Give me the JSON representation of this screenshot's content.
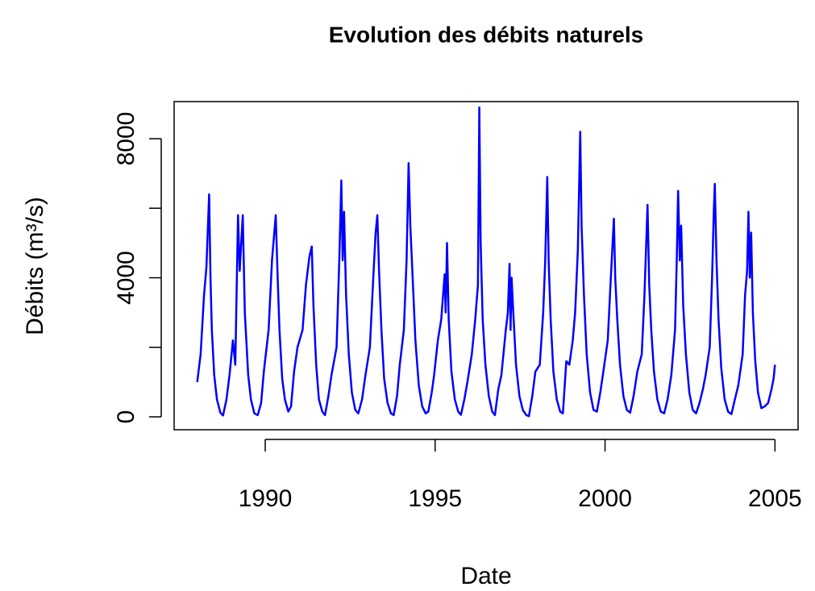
{
  "chart_data": {
    "type": "line",
    "title": "Evolution des débits naturels",
    "xlabel": "Date",
    "ylabel": "Débits (m³/s)",
    "xlim": [
      1987.32,
      2005.68
    ],
    "ylim": [
      -371,
      9067
    ],
    "xticks": [
      1990,
      1995,
      2000,
      2005
    ],
    "yticks": [
      0,
      4000,
      8000
    ],
    "yticks_unlabeled": [
      2000,
      6000
    ],
    "x": [
      1988.0,
      1988.1,
      1988.2,
      1988.27,
      1988.35,
      1988.39,
      1988.43,
      1988.5,
      1988.58,
      1988.68,
      1988.76,
      1988.86,
      1988.95,
      1989.05,
      1989.12,
      1989.2,
      1989.25,
      1989.34,
      1989.4,
      1989.5,
      1989.58,
      1989.68,
      1989.78,
      1989.88,
      1989.96,
      1990.1,
      1990.2,
      1990.31,
      1990.36,
      1990.42,
      1990.5,
      1990.58,
      1990.68,
      1990.76,
      1990.85,
      1990.95,
      1991.1,
      1991.2,
      1991.3,
      1991.37,
      1991.42,
      1991.5,
      1991.58,
      1991.68,
      1991.76,
      1991.86,
      1991.95,
      1992.1,
      1992.18,
      1992.24,
      1992.28,
      1992.32,
      1992.38,
      1992.46,
      1992.55,
      1992.65,
      1992.74,
      1992.85,
      1992.95,
      1993.08,
      1993.18,
      1993.25,
      1993.3,
      1993.35,
      1993.42,
      1993.5,
      1993.6,
      1993.7,
      1993.78,
      1993.88,
      1993.96,
      1994.08,
      1994.16,
      1994.22,
      1994.27,
      1994.33,
      1994.42,
      1994.52,
      1994.62,
      1994.72,
      1994.8,
      1994.9,
      1994.97,
      1995.08,
      1995.18,
      1995.28,
      1995.31,
      1995.35,
      1995.4,
      1995.48,
      1995.58,
      1995.68,
      1995.76,
      1995.86,
      1995.95,
      1996.08,
      1996.18,
      1996.26,
      1996.3,
      1996.34,
      1996.4,
      1996.48,
      1996.58,
      1996.68,
      1996.76,
      1996.86,
      1996.95,
      1997.08,
      1997.14,
      1997.19,
      1997.22,
      1997.25,
      1997.3,
      1997.38,
      1997.48,
      1997.58,
      1997.68,
      1997.76,
      1997.86,
      1997.95,
      1998.08,
      1998.18,
      1998.24,
      1998.3,
      1998.34,
      1998.4,
      1998.48,
      1998.58,
      1998.68,
      1998.76,
      1998.86,
      1998.95,
      1999.05,
      1999.12,
      1999.2,
      1999.27,
      1999.31,
      1999.38,
      1999.46,
      1999.56,
      1999.66,
      1999.76,
      1999.86,
      1999.95,
      2000.08,
      2000.16,
      2000.26,
      2000.3,
      2000.36,
      2000.44,
      2000.54,
      2000.64,
      2000.74,
      2000.84,
      2000.95,
      2001.08,
      2001.16,
      2001.25,
      2001.3,
      2001.36,
      2001.44,
      2001.54,
      2001.64,
      2001.74,
      2001.84,
      2001.95,
      2002.06,
      2002.11,
      2002.15,
      2002.2,
      2002.24,
      2002.3,
      2002.38,
      2002.48,
      2002.58,
      2002.68,
      2002.78,
      2002.88,
      2002.96,
      2003.08,
      2003.15,
      2003.2,
      2003.23,
      2003.28,
      2003.34,
      2003.42,
      2003.52,
      2003.62,
      2003.72,
      2003.82,
      2003.92,
      2004.05,
      2004.12,
      2004.18,
      2004.22,
      2004.26,
      2004.3,
      2004.35,
      2004.42,
      2004.5,
      2004.6,
      2004.7,
      2004.8,
      2004.9,
      2004.96,
      2005.0
    ],
    "series": [
      {
        "name": "Débits",
        "color": "#0000ff",
        "values": [
          1000,
          1800,
          3500,
          4300,
          6400,
          4000,
          2500,
          1200,
          500,
          120,
          40,
          500,
          1200,
          2200,
          1500,
          5800,
          4200,
          5800,
          3000,
          1200,
          500,
          100,
          50,
          400,
          1300,
          2500,
          4500,
          5800,
          4200,
          2500,
          1100,
          500,
          150,
          300,
          1300,
          2000,
          2500,
          3800,
          4600,
          4900,
          3200,
          1500,
          500,
          150,
          50,
          600,
          1200,
          2000,
          4500,
          6800,
          4500,
          5900,
          3500,
          1800,
          700,
          200,
          100,
          500,
          1200,
          2000,
          4000,
          5300,
          5800,
          4200,
          2500,
          1100,
          400,
          100,
          50,
          600,
          1500,
          2500,
          4500,
          7300,
          5500,
          4200,
          2200,
          900,
          300,
          100,
          150,
          700,
          1200,
          2200,
          2800,
          4100,
          3000,
          5000,
          2800,
          1300,
          500,
          150,
          60,
          500,
          1000,
          1800,
          2800,
          3800,
          8900,
          5000,
          2800,
          1500,
          600,
          150,
          50,
          800,
          1200,
          2500,
          3000,
          4400,
          2500,
          4000,
          3000,
          1500,
          600,
          200,
          50,
          20,
          600,
          1300,
          1500,
          3000,
          4500,
          6900,
          4500,
          2800,
          1300,
          500,
          150,
          100,
          1600,
          1500,
          2200,
          3000,
          4800,
          8200,
          5500,
          3500,
          1800,
          700,
          200,
          150,
          700,
          1300,
          2200,
          3800,
          5700,
          4000,
          2800,
          1500,
          600,
          200,
          120,
          600,
          1300,
          1800,
          3500,
          6100,
          3800,
          2500,
          1300,
          500,
          150,
          100,
          500,
          1200,
          2500,
          4500,
          6500,
          4500,
          5500,
          3200,
          1800,
          700,
          200,
          100,
          400,
          800,
          1200,
          2000,
          4000,
          5900,
          6700,
          4500,
          2800,
          1400,
          500,
          150,
          80,
          500,
          900,
          1800,
          3500,
          4200,
          5900,
          4000,
          5300,
          3000,
          1600,
          700,
          250,
          300,
          400,
          800,
          1100,
          1500
        ]
      }
    ]
  }
}
